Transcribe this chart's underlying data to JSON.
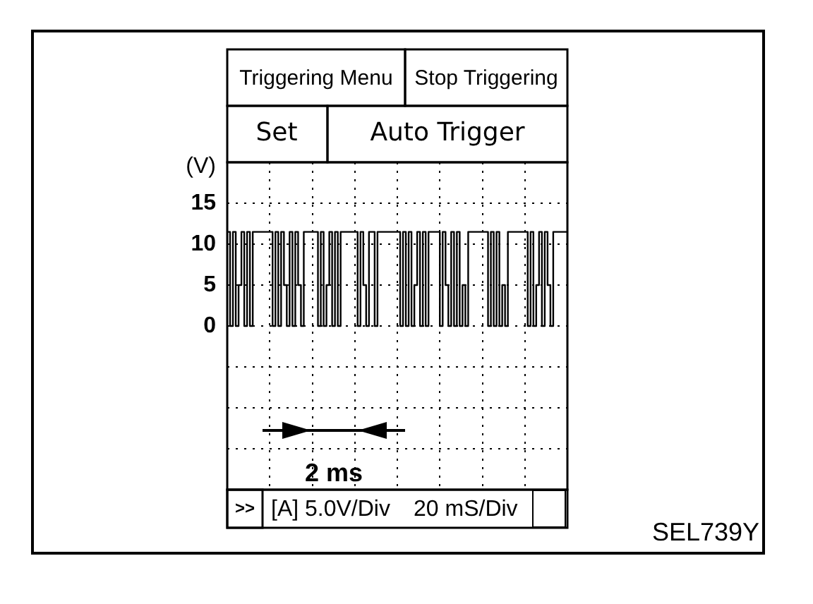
{
  "chart_data": {
    "type": "step",
    "ylabel": "(V)",
    "annotations": [
      "Triggering Menu",
      "Stop Triggering",
      "Set",
      "Auto Trigger",
      ">>",
      "[A] 5.0V/Div",
      "20 mS/Div",
      "2 ms",
      "SEL739Y"
    ],
    "categories": [
      null,
      null,
      null,
      null,
      null,
      null,
      null,
      null,
      null,
      null,
      null,
      null,
      null,
      null,
      null,
      null,
      null,
      null,
      null,
      null,
      null,
      null,
      null,
      null,
      null,
      null,
      null,
      null,
      null,
      null,
      null,
      null,
      null,
      null,
      null,
      null,
      null,
      null,
      null,
      null,
      null,
      null,
      null,
      null,
      null,
      null,
      null,
      null,
      null,
      null,
      null,
      null,
      null,
      null,
      null,
      null,
      null,
      null,
      null,
      null,
      null,
      null,
      null,
      null,
      null,
      null,
      null,
      null,
      null,
      null,
      null,
      null,
      null,
      null,
      null,
      null,
      null,
      null,
      null,
      null,
      null,
      null,
      null,
      null,
      null,
      null,
      null,
      null,
      null,
      null,
      null,
      null,
      null,
      null,
      null,
      null,
      null,
      null,
      null,
      null,
      null,
      null,
      null,
      null,
      null,
      null,
      null,
      null,
      null,
      null,
      null,
      null,
      null,
      null,
      null,
      null,
      null,
      null,
      null,
      null,
      null
    ],
    "values": [
      11.5,
      0,
      11.5,
      0,
      5,
      11.5,
      0,
      11.5,
      0,
      11.5,
      11.5,
      11.5,
      11.5,
      11.5,
      11.5,
      11.5,
      0,
      11.5,
      0,
      11.5,
      5,
      0,
      11.5,
      0,
      11.5,
      5,
      0,
      11.5,
      11.5,
      11.5,
      11.5,
      11.5,
      0,
      11.5,
      0,
      5,
      11.5,
      0,
      11.5,
      0,
      11.5,
      11.5,
      11.5,
      11.5,
      11.5,
      11.5,
      0,
      11.5,
      5,
      0,
      11.5,
      11.5,
      0,
      11.5,
      11.5,
      11.5,
      11.5,
      11.5,
      11.5,
      11.5,
      11.5,
      0,
      11.5,
      0,
      11.5,
      0,
      5,
      11.5,
      0,
      11.5,
      0,
      11.5,
      11.5,
      11.5,
      11.5,
      0,
      11.5,
      5,
      0,
      11.5,
      0,
      11.5,
      0,
      5,
      0,
      11.5,
      11.5,
      11.5,
      11.5,
      11.5,
      11.5,
      11.5,
      0,
      11.5,
      0,
      11.5,
      0,
      5,
      0,
      11.5,
      11.5,
      11.5,
      11.5,
      11.5,
      11.5,
      11.5,
      0,
      11.5,
      0,
      5,
      11.5,
      0,
      11.5,
      5,
      0,
      11.5,
      11.5,
      11.5,
      11.5,
      11.5,
      11.5
    ],
    "color": "#000000",
    "ylim": [
      -20,
      20
    ],
    "yticks": [
      {
        "value": -15,
        "label": null
      },
      {
        "value": -10,
        "label": null
      },
      {
        "value": -5,
        "label": null
      },
      0,
      5,
      10,
      15
    ],
    "grid": true,
    "tick_labels": "y",
    "marker": "none"
  }
}
